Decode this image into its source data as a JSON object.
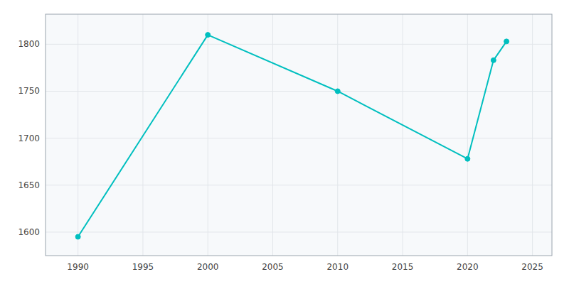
{
  "chart_data": {
    "type": "line",
    "x": [
      1990,
      2000,
      2010,
      2020,
      2022,
      2023
    ],
    "values": [
      1595,
      1810,
      1750,
      1678,
      1783,
      1803
    ],
    "color": "#00BFBF",
    "marker": "circle",
    "xlim": [
      1987.5,
      2026.5
    ],
    "ylim": [
      1575,
      1832
    ],
    "xticks": [
      1990,
      1995,
      2000,
      2005,
      2010,
      2015,
      2020,
      2025
    ],
    "yticks": [
      1600,
      1650,
      1700,
      1750,
      1800
    ],
    "grid": true
  }
}
